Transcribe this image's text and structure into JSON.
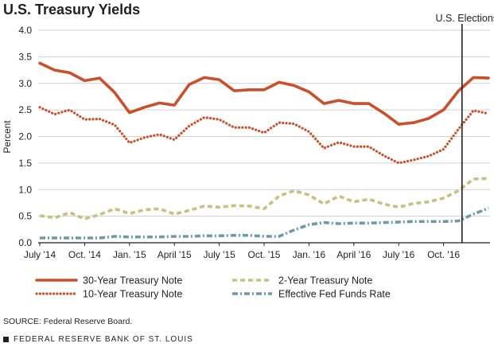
{
  "chart_data": {
    "type": "line",
    "title": "U.S. Treasury Yields",
    "ylabel": "Percent",
    "xlabel": "",
    "ylim": [
      0,
      4
    ],
    "yticks": [
      "0.0",
      "0.5",
      "1.0",
      "1.5",
      "2.0",
      "2.5",
      "3.0",
      "3.5",
      "4.0"
    ],
    "xtick_labels": [
      "July '14",
      "Oct. '14",
      "Jan. '15",
      "April '15",
      "July '15",
      "Oct. '15",
      "Jan. '16",
      "April '16",
      "July '16",
      "Oct. '16"
    ],
    "x": [
      "2014-07",
      "2014-08",
      "2014-09",
      "2014-10",
      "2014-11",
      "2014-12",
      "2015-01",
      "2015-02",
      "2015-03",
      "2015-04",
      "2015-05",
      "2015-06",
      "2015-07",
      "2015-08",
      "2015-09",
      "2015-10",
      "2015-11",
      "2015-12",
      "2016-01",
      "2016-02",
      "2016-03",
      "2016-04",
      "2016-05",
      "2016-06",
      "2016-07",
      "2016-08",
      "2016-09",
      "2016-10",
      "2016-11",
      "2016-12",
      "2017-01"
    ],
    "grid": true,
    "legend_position": "bottom",
    "annotation": {
      "label": "U.S. Elections",
      "x": "2016-11-08"
    },
    "series": [
      {
        "name": "30-Year Treasury Note",
        "color": "#c8502b",
        "style": "solid",
        "values": [
          3.38,
          3.25,
          3.2,
          3.05,
          3.1,
          2.83,
          2.45,
          2.55,
          2.63,
          2.59,
          2.98,
          3.11,
          3.07,
          2.86,
          2.88,
          2.88,
          3.02,
          2.96,
          2.84,
          2.62,
          2.68,
          2.62,
          2.62,
          2.44,
          2.23,
          2.26,
          2.34,
          2.5,
          2.86,
          3.11,
          3.1
        ]
      },
      {
        "name": "10-Year Treasury Note",
        "color": "#c8502b",
        "style": "dotted",
        "values": [
          2.55,
          2.42,
          2.5,
          2.32,
          2.33,
          2.22,
          1.88,
          1.98,
          2.04,
          1.94,
          2.2,
          2.36,
          2.32,
          2.17,
          2.17,
          2.07,
          2.26,
          2.24,
          2.09,
          1.78,
          1.89,
          1.81,
          1.81,
          1.64,
          1.5,
          1.56,
          1.63,
          1.76,
          2.14,
          2.49,
          2.43
        ]
      },
      {
        "name": "2-Year Treasury Note",
        "color": "#c5c27e",
        "style": "dashed",
        "values": [
          0.51,
          0.47,
          0.57,
          0.45,
          0.53,
          0.64,
          0.55,
          0.62,
          0.64,
          0.54,
          0.61,
          0.69,
          0.67,
          0.7,
          0.69,
          0.64,
          0.88,
          0.98,
          0.9,
          0.73,
          0.88,
          0.77,
          0.82,
          0.73,
          0.67,
          0.74,
          0.77,
          0.84,
          0.98,
          1.2,
          1.21
        ]
      },
      {
        "name": "Effective Fed Funds Rate",
        "color": "#6e9aa6",
        "style": "dashdot",
        "values": [
          0.09,
          0.09,
          0.09,
          0.09,
          0.09,
          0.12,
          0.11,
          0.11,
          0.11,
          0.12,
          0.12,
          0.13,
          0.13,
          0.14,
          0.14,
          0.12,
          0.12,
          0.24,
          0.34,
          0.38,
          0.36,
          0.37,
          0.37,
          0.38,
          0.39,
          0.4,
          0.4,
          0.4,
          0.41,
          0.54,
          0.65
        ]
      }
    ]
  },
  "footer": {
    "source": "SOURCE: Federal Reserve Board.",
    "org": "FEDERAL RESERVE BANK OF ST. LOUIS"
  }
}
